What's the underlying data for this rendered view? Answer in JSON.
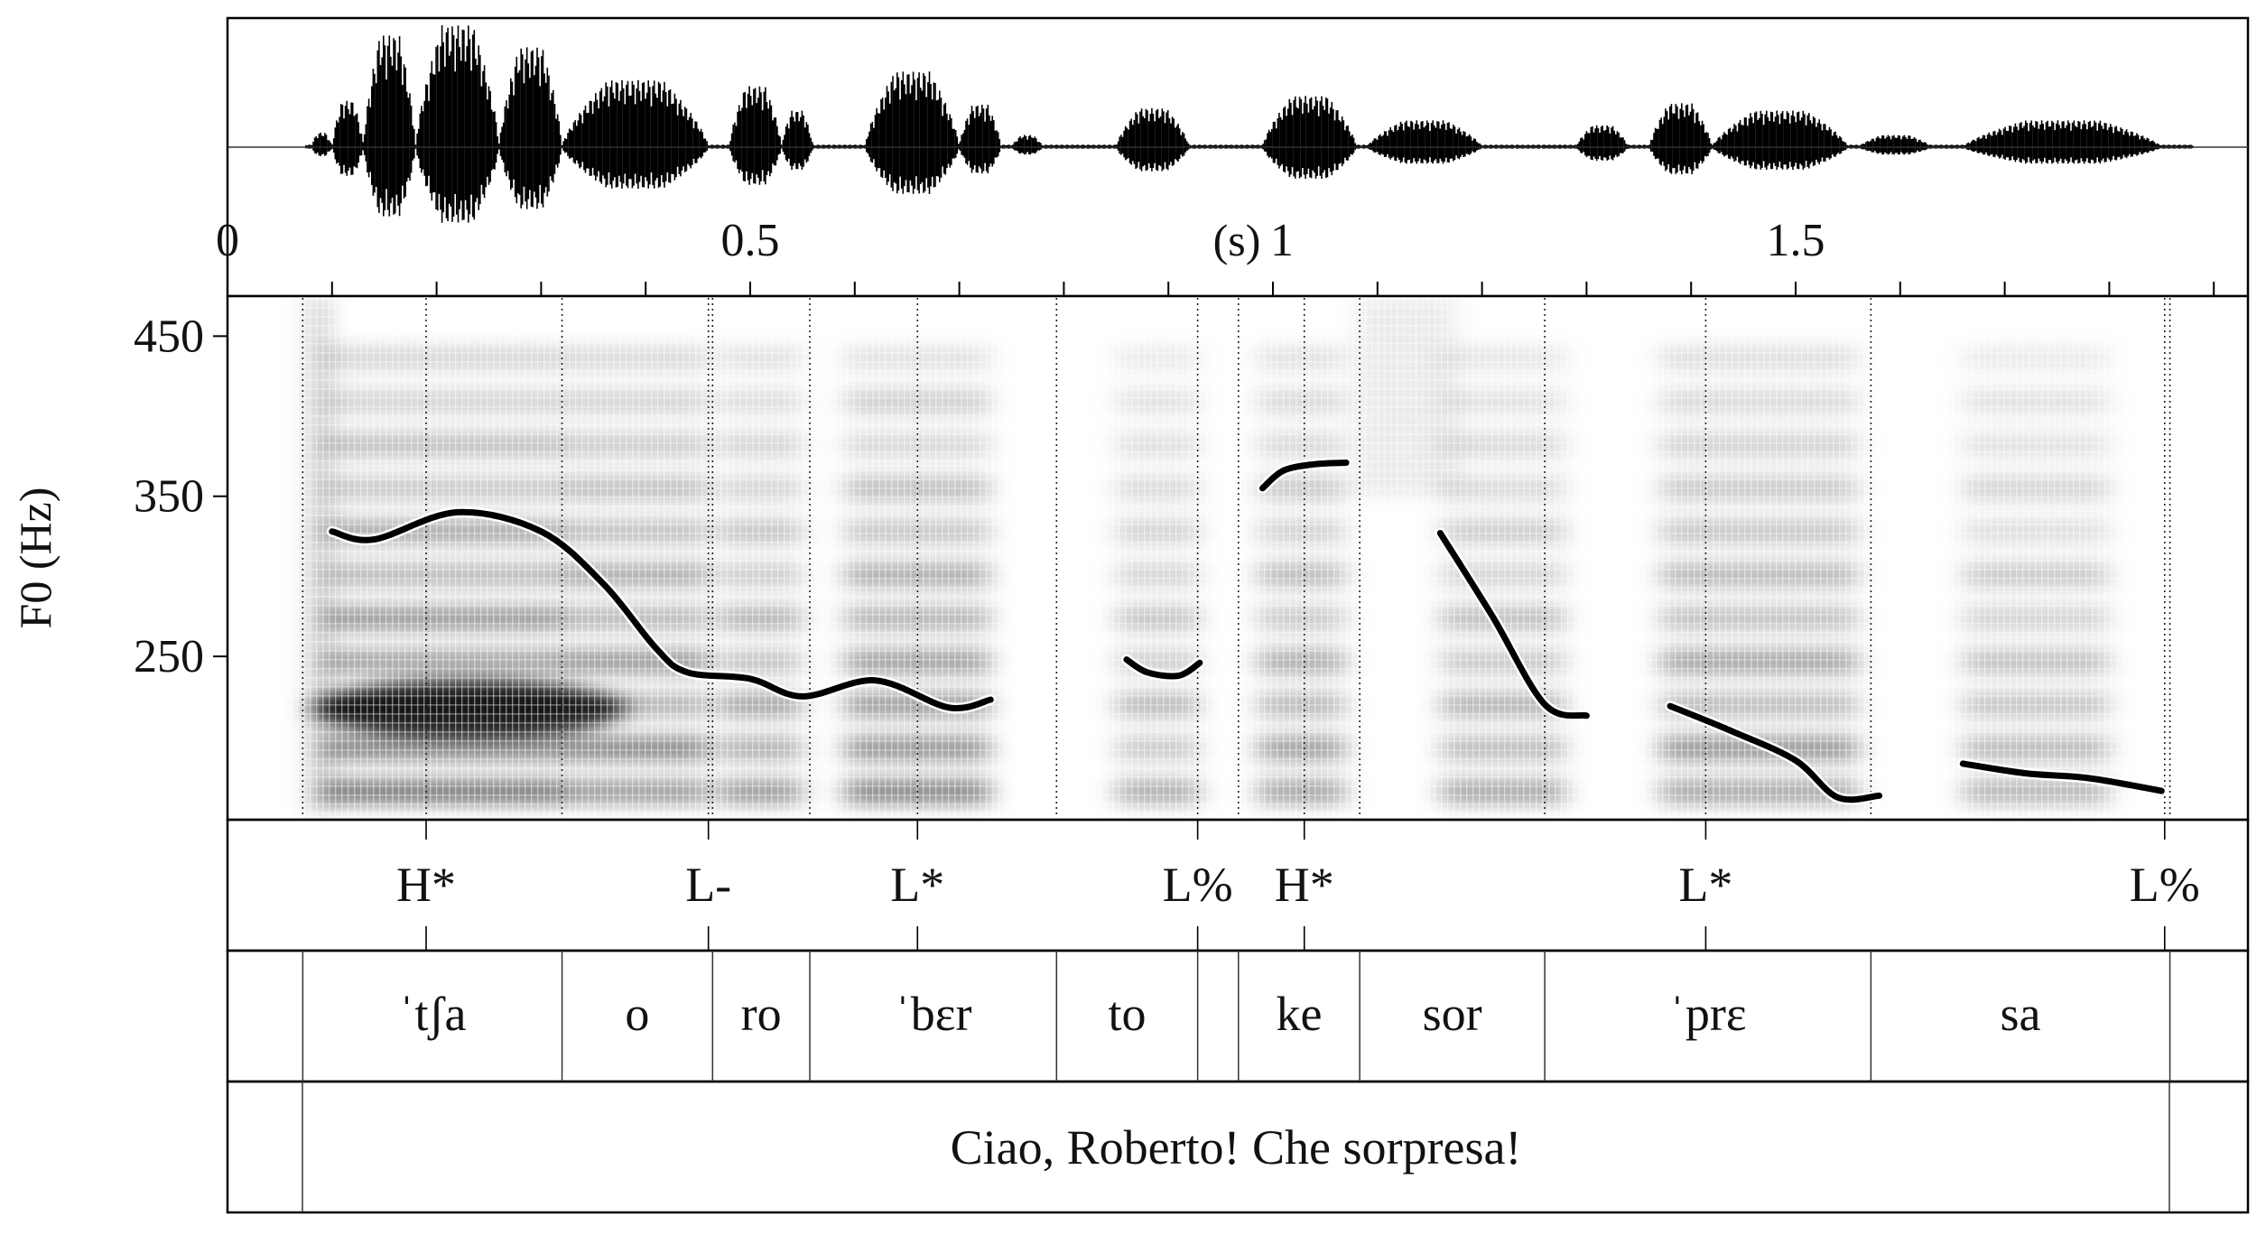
{
  "waveform": {
    "time_ticks": [
      {
        "label": "0",
        "t": 0
      },
      {
        "label": "0.5",
        "t": 0.5
      },
      {
        "label": "1",
        "t": 1.0
      },
      {
        "label": "1.5",
        "t": 1.5
      }
    ],
    "unit_label": "(s)",
    "duration_s": 1.9
  },
  "spectrogram": {
    "y_axis_label": "F0 (Hz)",
    "y_ticks": [
      450,
      350,
      250
    ],
    "f0_range_hz": [
      148,
      475
    ]
  },
  "f0_contour": [
    {
      "segment": 1,
      "points": [
        [
          0.1,
          328
        ],
        [
          0.14,
          323
        ],
        [
          0.22,
          340
        ],
        [
          0.3,
          328
        ],
        [
          0.36,
          295
        ],
        [
          0.41,
          255
        ],
        [
          0.44,
          240
        ],
        [
          0.5,
          236
        ],
        [
          0.55,
          225
        ],
        [
          0.62,
          235
        ],
        [
          0.69,
          218
        ],
        [
          0.73,
          223
        ]
      ]
    },
    {
      "segment": 2,
      "points": [
        [
          0.86,
          248
        ],
        [
          0.88,
          240
        ],
        [
          0.91,
          238
        ],
        [
          0.93,
          246
        ]
      ]
    },
    {
      "segment": 3,
      "points": [
        [
          0.99,
          355
        ],
        [
          1.01,
          366
        ],
        [
          1.04,
          370
        ],
        [
          1.07,
          371
        ]
      ]
    },
    {
      "segment": 4,
      "points": [
        [
          1.16,
          327
        ],
        [
          1.21,
          275
        ],
        [
          1.26,
          220
        ],
        [
          1.3,
          213
        ]
      ]
    },
    {
      "segment": 5,
      "points": [
        [
          1.38,
          219
        ],
        [
          1.44,
          203
        ],
        [
          1.5,
          185
        ],
        [
          1.54,
          162
        ],
        [
          1.58,
          163
        ]
      ]
    },
    {
      "segment": 6,
      "points": [
        [
          1.66,
          183
        ],
        [
          1.72,
          177
        ],
        [
          1.78,
          174
        ],
        [
          1.85,
          166
        ]
      ]
    }
  ],
  "tones_tier": [
    {
      "label": "H*",
      "t": 0.19
    },
    {
      "label": "L-",
      "t": 0.46
    },
    {
      "label": "L*",
      "t": 0.66
    },
    {
      "label": "L%",
      "t": 0.928
    },
    {
      "label": "H*",
      "t": 1.03
    },
    {
      "label": "L*",
      "t": 1.414
    },
    {
      "label": "L%",
      "t": 1.853
    }
  ],
  "syllables_tier": [
    {
      "label": "ˈtʃa",
      "start": 0.072,
      "end": 0.32
    },
    {
      "label": "o",
      "start": 0.32,
      "end": 0.464
    },
    {
      "label": "ro",
      "start": 0.464,
      "end": 0.557
    },
    {
      "label": "ˈbɛr",
      "start": 0.557,
      "end": 0.793
    },
    {
      "label": "to",
      "start": 0.793,
      "end": 0.928
    },
    {
      "label": "",
      "start": 0.928,
      "end": 0.967
    },
    {
      "label": "ke",
      "start": 0.967,
      "end": 1.083
    },
    {
      "label": "sor",
      "start": 1.083,
      "end": 1.26
    },
    {
      "label": "ˈprɛ",
      "start": 1.26,
      "end": 1.572
    },
    {
      "label": "sa",
      "start": 1.572,
      "end": 1.858
    }
  ],
  "sentence_tier": {
    "text": "Ciao, Roberto! Che sorpresa!",
    "start": 0.072,
    "end": 1.858
  }
}
